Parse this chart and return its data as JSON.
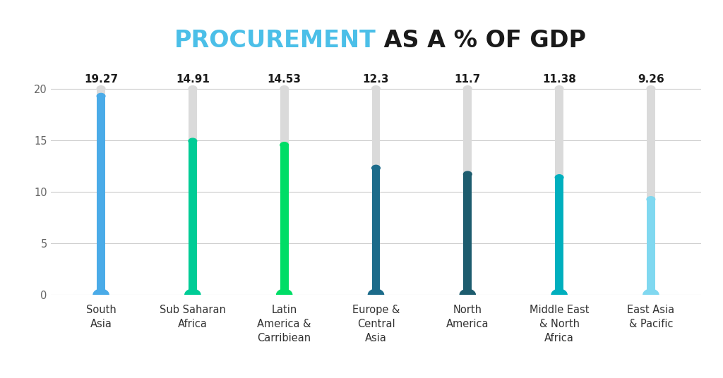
{
  "title_colored": "PROCUREMENT",
  "title_rest": " AS A % OF GDP",
  "title_color": "#4BBFE8",
  "title_rest_color": "#1a1a1a",
  "categories": [
    "South\nAsia",
    "Sub Saharan\nAfrica",
    "Latin\nAmerica &\nCarribiean",
    "Europe &\nCentral\nAsia",
    "North\nAmerica",
    "Middle East\n& North\nAfrica",
    "East Asia\n& Pacific"
  ],
  "values": [
    19.27,
    14.91,
    14.53,
    12.3,
    11.7,
    11.38,
    9.26
  ],
  "bar_colors": [
    "#4AABE8",
    "#00CC96",
    "#00DD66",
    "#1C6B8A",
    "#1D5C6E",
    "#00AFBE",
    "#80D8F0"
  ],
  "max_value": 20,
  "background_color": "#ffffff",
  "bar_bg_color": "#DADADA",
  "ylim": [
    0,
    22
  ],
  "title_fontsize": 24,
  "label_fontsize": 10.5,
  "value_fontsize": 11,
  "yticks": [
    0,
    5,
    10,
    15,
    20
  ]
}
